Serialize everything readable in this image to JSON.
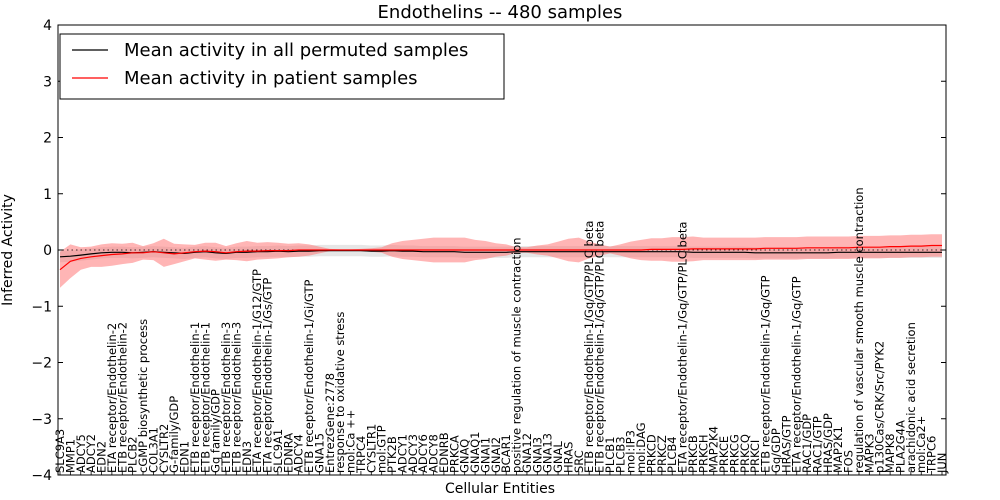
{
  "chart_data": {
    "type": "line",
    "title": "Endothelins -- 480 samples",
    "xlabel": "Cellular Entities",
    "ylabel": "Inferred Activity",
    "ylim": [
      -4,
      4
    ],
    "yticks": [
      -4,
      -3,
      -2,
      -1,
      0,
      1,
      2,
      3,
      4
    ],
    "grid": false,
    "legend_position": "top-left",
    "legend": [
      {
        "label": "Mean activity in all permuted samples",
        "color": "#000000"
      },
      {
        "label": "Mean activity in patient samples",
        "color": "#ff0000"
      }
    ],
    "categories": [
      "SLC9A3",
      "MMP1",
      "ADCY5",
      "ADCY2",
      "EDN2",
      "ETA receptor/Endothelin-2",
      "ETB receptor/Endothelin-2",
      "PLCB2",
      "cGMP biosynthetic process",
      "COL3A1",
      "CYSLTR2",
      "G-family/GDP",
      "EDN1",
      "ETB receptor/Endothelin-1",
      "ETB receptor/Endothelin-1",
      "Gq family/GDP",
      "ETB receptor/Endothelin-3",
      "ETB receptor/Endothelin-3",
      "EDN3",
      "ETA receptor/Endothelin-1/G12/GTP",
      "ETA receptor/Endothelin-1/Gs/GTP",
      "SLC9A1",
      "EDNRA",
      "ADCY4",
      "ETB receptor/Endothelin-1/Gi/GTP",
      "GNA15",
      "EntrezGene:2778",
      "response to oxidative stress",
      "mol:Ca ++",
      "TRPC4",
      "CYSLTR1",
      "mol:GTP",
      "PTK2B",
      "ADCY1",
      "ADCY3",
      "ADCY6",
      "ADCY8",
      "EDNRB",
      "PRKCA",
      "GNAQ",
      "GNAQ1",
      "GNAI1",
      "GNAI2",
      "BCAR1",
      "positive regulation of muscle contraction",
      "GNA12",
      "GNAI3",
      "GNA13",
      "GNAL",
      "HRAS",
      "SRC",
      "ETB receptor/Endothelin-1/Gq/GTP/PLC beta",
      "ETB receptor/Endothelin-1/Gq/GTP/PLC beta",
      "PLCB1",
      "PLCB3",
      "mol:IP3",
      "mol:DAG",
      "PRKCD",
      "PRKCZ",
      "PLCB4",
      "ETA receptor/Endothelin-1/Gq/GTP/PLC beta",
      "PRKCB",
      "PRKCH",
      "MAP2K4",
      "PRKCE",
      "PRKCG",
      "PRKCQ",
      "PRKCI",
      "ETB receptor/Endothelin-1/Gq/GTP",
      "Gq/GDP",
      "HRAS/GTP",
      "ETA receptor/Endothelin-1/Gq/GTP",
      "RAC1/GDP",
      "RAC1/GTP",
      "HRAS/GDP",
      "MAP2K1",
      "FOS",
      "regulation of vascular smooth muscle contraction",
      "MAPK3",
      "p130Cas/CRK/Src/PYK2",
      "MAPK8",
      "PLA2G4A",
      "arachidonic acid secretion",
      "mol:Ca2+",
      "TRPC6",
      "JUN"
    ],
    "series": [
      {
        "name": "Mean activity in all permuted samples",
        "color": "#000000",
        "values": [
          -0.12,
          -0.11,
          -0.09,
          -0.07,
          -0.05,
          -0.04,
          -0.04,
          -0.05,
          -0.04,
          -0.03,
          -0.04,
          -0.05,
          -0.06,
          -0.04,
          -0.03,
          -0.05,
          -0.06,
          -0.04,
          -0.04,
          -0.03,
          -0.03,
          -0.02,
          -0.03,
          -0.02,
          -0.02,
          -0.01,
          -0.01,
          -0.01,
          -0.01,
          -0.01,
          -0.02,
          -0.02,
          -0.01,
          -0.02,
          -0.02,
          -0.03,
          -0.03,
          -0.03,
          -0.03,
          -0.04,
          -0.04,
          -0.04,
          -0.04,
          -0.04,
          -0.03,
          -0.03,
          -0.03,
          -0.03,
          -0.03,
          -0.03,
          -0.03,
          -0.03,
          -0.03,
          -0.03,
          -0.03,
          -0.03,
          -0.03,
          -0.03,
          -0.03,
          -0.03,
          -0.03,
          -0.04,
          -0.04,
          -0.04,
          -0.04,
          -0.04,
          -0.04,
          -0.05,
          -0.05,
          -0.05,
          -0.05,
          -0.05,
          -0.05,
          -0.05,
          -0.05,
          -0.04,
          -0.04,
          -0.04,
          -0.04,
          -0.04,
          -0.04,
          -0.04,
          -0.04,
          -0.04,
          -0.04,
          -0.04
        ],
        "band": [
          0.1,
          0.1,
          0.1,
          0.1,
          0.1,
          0.1,
          0.1,
          0.1,
          0.1,
          0.1,
          0.1,
          0.1,
          0.1,
          0.1,
          0.1,
          0.1,
          0.1,
          0.1,
          0.1,
          0.1,
          0.1,
          0.1,
          0.1,
          0.1,
          0.1,
          0.1,
          0.1,
          0.1,
          0.1,
          0.1,
          0.1,
          0.1,
          0.1,
          0.1,
          0.1,
          0.1,
          0.1,
          0.1,
          0.1,
          0.1,
          0.1,
          0.1,
          0.1,
          0.1,
          0.1,
          0.1,
          0.1,
          0.1,
          0.1,
          0.1,
          0.1,
          0.1,
          0.1,
          0.1,
          0.1,
          0.1,
          0.1,
          0.1,
          0.1,
          0.1,
          0.1,
          0.1,
          0.1,
          0.1,
          0.1,
          0.1,
          0.1,
          0.1,
          0.1,
          0.1,
          0.1,
          0.1,
          0.1,
          0.1,
          0.1,
          0.1,
          0.1,
          0.1,
          0.1,
          0.1,
          0.1,
          0.1,
          0.1,
          0.1,
          0.1,
          0.1
        ]
      },
      {
        "name": "Mean activity in patient samples",
        "color": "#ff0000",
        "values": [
          -0.35,
          -0.2,
          -0.15,
          -0.12,
          -0.1,
          -0.08,
          -0.07,
          -0.05,
          -0.05,
          -0.03,
          -0.05,
          -0.07,
          -0.05,
          -0.03,
          -0.02,
          -0.03,
          -0.05,
          -0.03,
          -0.02,
          -0.02,
          -0.01,
          -0.01,
          -0.01,
          0.0,
          0.0,
          0.0,
          0.0,
          0.0,
          0.0,
          0.0,
          0.0,
          0.0,
          0.0,
          0.0,
          0.0,
          0.0,
          0.0,
          0.0,
          0.0,
          0.0,
          0.0,
          0.0,
          0.0,
          0.0,
          0.0,
          0.0,
          0.0,
          0.0,
          0.0,
          0.0,
          0.0,
          0.0,
          0.0,
          0.0,
          0.0,
          0.0,
          0.0,
          0.01,
          0.01,
          0.01,
          0.01,
          0.02,
          0.02,
          0.02,
          0.02,
          0.02,
          0.02,
          0.02,
          0.03,
          0.03,
          0.03,
          0.03,
          0.04,
          0.04,
          0.04,
          0.04,
          0.04,
          0.05,
          0.05,
          0.05,
          0.06,
          0.06,
          0.07,
          0.07,
          0.08,
          0.08
        ],
        "band": [
          0.32,
          0.3,
          0.2,
          0.18,
          0.2,
          0.2,
          0.18,
          0.18,
          0.12,
          0.15,
          0.25,
          0.18,
          0.15,
          0.12,
          0.15,
          0.16,
          0.12,
          0.15,
          0.18,
          0.15,
          0.15,
          0.14,
          0.12,
          0.12,
          0.1,
          0.06,
          0.02,
          0.01,
          0.01,
          0.02,
          0.03,
          0.05,
          0.12,
          0.16,
          0.18,
          0.2,
          0.22,
          0.22,
          0.22,
          0.22,
          0.18,
          0.16,
          0.12,
          0.1,
          0.05,
          0.05,
          0.08,
          0.1,
          0.15,
          0.2,
          0.22,
          0.15,
          0.1,
          0.06,
          0.1,
          0.15,
          0.18,
          0.2,
          0.2,
          0.22,
          0.22,
          0.22,
          0.2,
          0.2,
          0.2,
          0.2,
          0.2,
          0.2,
          0.2,
          0.2,
          0.2,
          0.2,
          0.2,
          0.2,
          0.2,
          0.2,
          0.2,
          0.2,
          0.2,
          0.2,
          0.2,
          0.2,
          0.2,
          0.2,
          0.2,
          0.2
        ]
      }
    ]
  }
}
